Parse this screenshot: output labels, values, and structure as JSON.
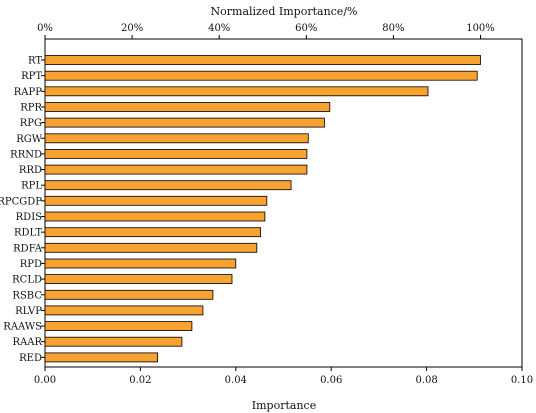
{
  "chart_data": {
    "type": "bar",
    "orientation": "horizontal",
    "categories": [
      "RT",
      "RPT",
      "RAPP",
      "RPR",
      "RPG",
      "RGW",
      "RRND",
      "RRD",
      "RPL",
      "RPCGDP",
      "RDIS",
      "RDLT",
      "RDFA",
      "RPD",
      "RCLD",
      "RSBC",
      "RLVP",
      "RAAWS",
      "RAAR",
      "RED"
    ],
    "values": [
      0.0913,
      0.0906,
      0.0803,
      0.0597,
      0.0586,
      0.0552,
      0.0549,
      0.0549,
      0.0516,
      0.0465,
      0.0461,
      0.0452,
      0.0444,
      0.04,
      0.0392,
      0.0352,
      0.0331,
      0.0308,
      0.0287,
      0.0236
    ],
    "xlabel": "Importance",
    "x2label": "Normalized Importance/%",
    "xlim": [
      0,
      0.1
    ],
    "x_ticks": [
      "0.00",
      "0.02",
      "0.04",
      "0.06",
      "0.08",
      "0.10"
    ],
    "x2_ticks": [
      "0%",
      "20%",
      "40%",
      "60%",
      "80%",
      "100%"
    ],
    "x2_scale_max_value": 0.0913,
    "bar_color": "#f7a231",
    "bar_edge_color": "#000000",
    "grid": false
  }
}
